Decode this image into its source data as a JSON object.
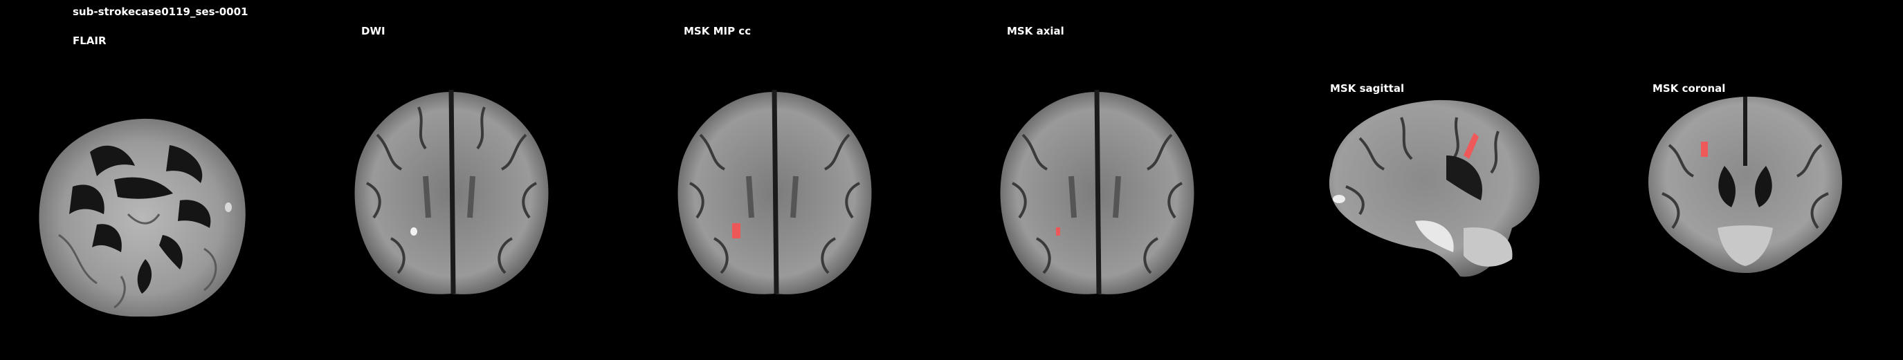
{
  "subject_title": "sub-strokecase0119_ses-0001",
  "panels": [
    {
      "label": "FLAIR"
    },
    {
      "label": "DWI"
    },
    {
      "label": "MSK MIP cc"
    },
    {
      "label": "MSK axial"
    },
    {
      "label": "MSK sagittal"
    },
    {
      "label": "MSK coronal"
    }
  ],
  "colors": {
    "background": "#000000",
    "lesion_mask": "#ff4d4d",
    "text": "#ffffff"
  }
}
